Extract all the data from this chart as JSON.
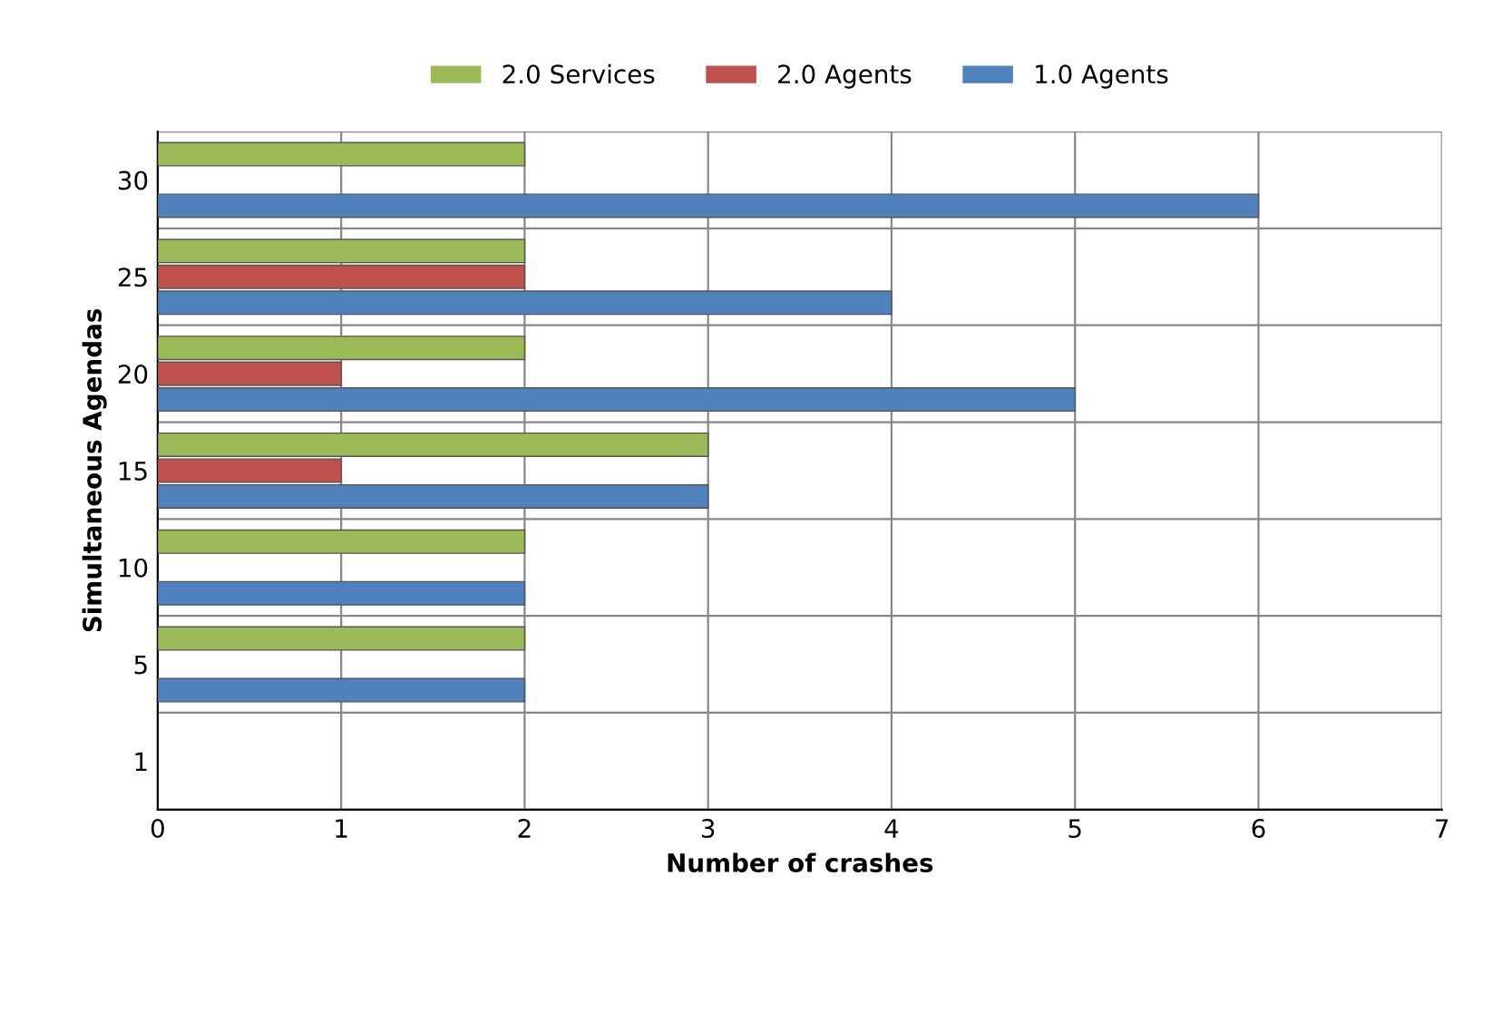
{
  "chart_data": {
    "type": "bar",
    "orientation": "horizontal",
    "xlabel": "Number of crashes",
    "ylabel": "Simultaneous Agendas",
    "categories": [
      "30",
      "25",
      "20",
      "15",
      "10",
      "5",
      "1"
    ],
    "series": [
      {
        "name": "2.0 Services",
        "color": "#9bbb59",
        "values": [
          2,
          2,
          2,
          3,
          2,
          2,
          null
        ]
      },
      {
        "name": "2.0 Agents",
        "color": "#c0504d",
        "values": [
          null,
          2,
          1,
          1,
          null,
          null,
          null
        ]
      },
      {
        "name": "1.0 Agents",
        "color": "#4f81bd",
        "values": [
          6,
          4,
          5,
          3,
          2,
          2,
          null
        ]
      }
    ],
    "xlim": [
      0,
      7
    ],
    "xticks": [
      0,
      1,
      2,
      3,
      4,
      5,
      6,
      7
    ],
    "grid": true,
    "legend": "top"
  }
}
